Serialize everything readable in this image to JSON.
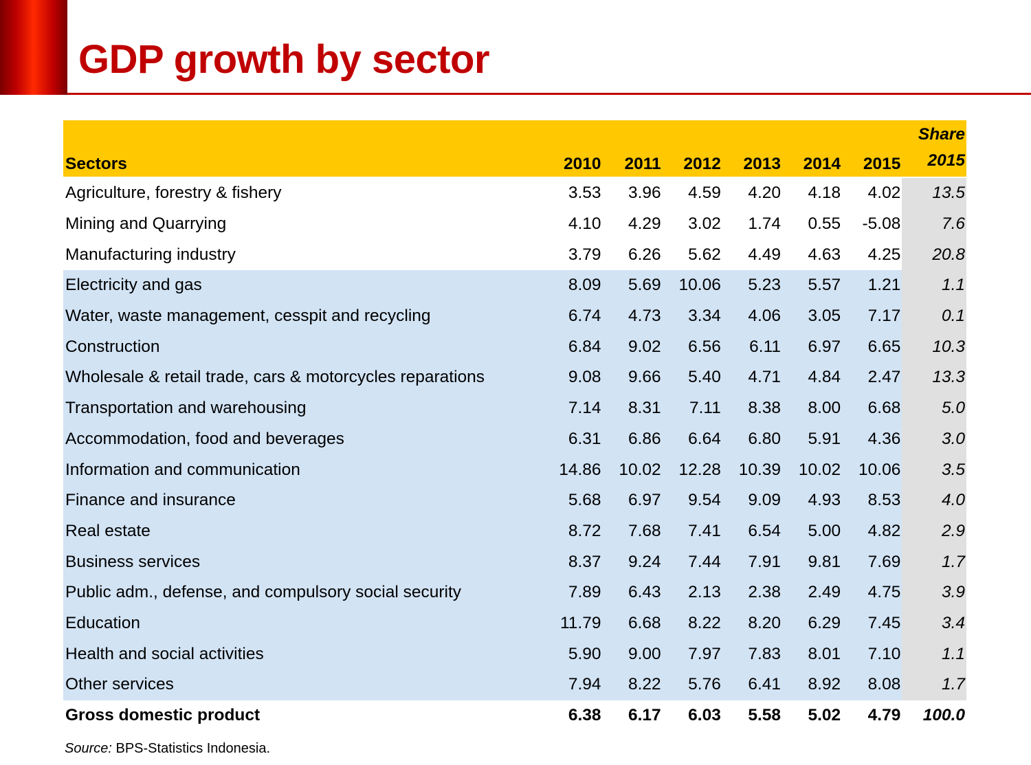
{
  "title": "GDP growth by sector",
  "table": {
    "headers": {
      "sector": "Sectors",
      "years": [
        "2010",
        "2011",
        "2012",
        "2013",
        "2014",
        "2015"
      ],
      "share_line1": "Share",
      "share_line2": "2015"
    },
    "rows": [
      {
        "sector": "Agriculture, forestry & fishery",
        "values": [
          "3.53",
          "3.96",
          "4.59",
          "4.20",
          "4.18",
          "4.02"
        ],
        "share": "13.5",
        "group": 1
      },
      {
        "sector": "Mining and Quarrying",
        "values": [
          "4.10",
          "4.29",
          "3.02",
          "1.74",
          "0.55",
          "-5.08"
        ],
        "share": "7.6",
        "group": 1
      },
      {
        "sector": "Manufacturing industry",
        "values": [
          "3.79",
          "6.26",
          "5.62",
          "4.49",
          "4.63",
          "4.25"
        ],
        "share": "20.8",
        "group": 1
      },
      {
        "sector": "Electricity and gas",
        "values": [
          "8.09",
          "5.69",
          "10.06",
          "5.23",
          "5.57",
          "1.21"
        ],
        "share": "1.1",
        "group": 2
      },
      {
        "sector": "Water, waste management, cesspit and recycling",
        "values": [
          "6.74",
          "4.73",
          "3.34",
          "4.06",
          "3.05",
          "7.17"
        ],
        "share": "0.1",
        "group": 2
      },
      {
        "sector": "Construction",
        "values": [
          "6.84",
          "9.02",
          "6.56",
          "6.11",
          "6.97",
          "6.65"
        ],
        "share": "10.3",
        "group": 2
      },
      {
        "sector": "Wholesale & retail trade, cars & motorcycles reparations",
        "values": [
          "9.08",
          "9.66",
          "5.40",
          "4.71",
          "4.84",
          "2.47"
        ],
        "share": "13.3",
        "group": 2
      },
      {
        "sector": "Transportation and warehousing",
        "values": [
          "7.14",
          "8.31",
          "7.11",
          "8.38",
          "8.00",
          "6.68"
        ],
        "share": "5.0",
        "group": 2
      },
      {
        "sector": "Accommodation, food and beverages",
        "values": [
          "6.31",
          "6.86",
          "6.64",
          "6.80",
          "5.91",
          "4.36"
        ],
        "share": "3.0",
        "group": 2
      },
      {
        "sector": "Information and communication",
        "values": [
          "14.86",
          "10.02",
          "12.28",
          "10.39",
          "10.02",
          "10.06"
        ],
        "share": "3.5",
        "group": 2
      },
      {
        "sector": "Finance and insurance",
        "values": [
          "5.68",
          "6.97",
          "9.54",
          "9.09",
          "4.93",
          "8.53"
        ],
        "share": "4.0",
        "group": 2
      },
      {
        "sector": "Real estate",
        "values": [
          "8.72",
          "7.68",
          "7.41",
          "6.54",
          "5.00",
          "4.82"
        ],
        "share": "2.9",
        "group": 2
      },
      {
        "sector": "Business services",
        "values": [
          "8.37",
          "9.24",
          "7.44",
          "7.91",
          "9.81",
          "7.69"
        ],
        "share": "1.7",
        "group": 2
      },
      {
        "sector": "Public adm., defense, and compulsory social security",
        "values": [
          "7.89",
          "6.43",
          "2.13",
          "2.38",
          "2.49",
          "4.75"
        ],
        "share": "3.9",
        "group": 2
      },
      {
        "sector": "Education",
        "values": [
          "11.79",
          "6.68",
          "8.22",
          "8.20",
          "6.29",
          "7.45"
        ],
        "share": "3.4",
        "group": 2
      },
      {
        "sector": "Health and social activities",
        "values": [
          "5.90",
          "9.00",
          "7.97",
          "7.83",
          "8.01",
          "7.10"
        ],
        "share": "1.1",
        "group": 2
      },
      {
        "sector": "Other services",
        "values": [
          "7.94",
          "8.22",
          "5.76",
          "6.41",
          "8.92",
          "8.08"
        ],
        "share": "1.7",
        "group": 2
      }
    ],
    "total": {
      "sector": "Gross domestic product",
      "values": [
        "6.38",
        "6.17",
        "6.03",
        "5.58",
        "5.02",
        "4.79"
      ],
      "share": "100.0"
    }
  },
  "source": {
    "label": "Source:",
    "text": " BPS-Statistics Indonesia."
  },
  "colors": {
    "title": "#c00000",
    "header_bg": "#ffc800",
    "band_bg": "#d2e3f4",
    "share_bg": "#e0e0e0"
  }
}
